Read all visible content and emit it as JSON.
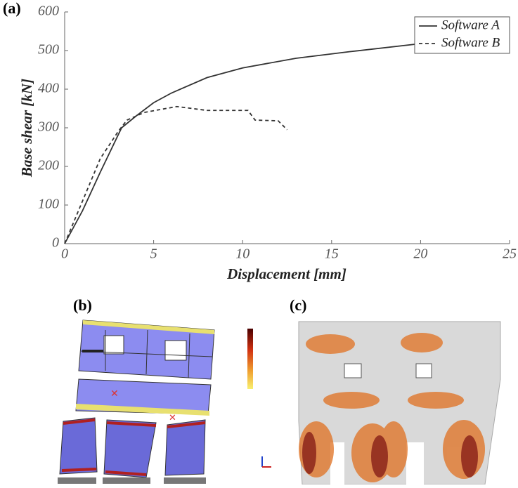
{
  "panel_labels": [
    "(a)",
    "(b)",
    "(c)"
  ],
  "chart_data": {
    "type": "line",
    "xlabel": "Displacement [mm]",
    "ylabel": "Base shear [kN]",
    "xlim": [
      0,
      25
    ],
    "ylim": [
      0,
      600
    ],
    "xticks": [
      0,
      5,
      10,
      15,
      20,
      25
    ],
    "yticks": [
      0,
      100,
      200,
      300,
      400,
      500,
      600
    ],
    "legend": "upper right",
    "series": [
      {
        "name": "Software A",
        "color": "#333333",
        "dash": "solid",
        "x": [
          0,
          1,
          2,
          3.2,
          4,
          5,
          6,
          8,
          10,
          13,
          16,
          20,
          25
        ],
        "values": [
          0,
          85,
          185,
          300,
          330,
          365,
          390,
          430,
          455,
          480,
          497,
          518,
          540
        ]
      },
      {
        "name": "Software B",
        "color": "#333333",
        "dash": "dashed",
        "x": [
          0,
          1,
          2,
          3,
          3.5,
          4.5,
          6.3,
          8,
          10.3,
          10.7,
          12,
          12.5
        ],
        "values": [
          0,
          110,
          220,
          290,
          320,
          340,
          355,
          345,
          345,
          320,
          318,
          295
        ]
      }
    ]
  }
}
